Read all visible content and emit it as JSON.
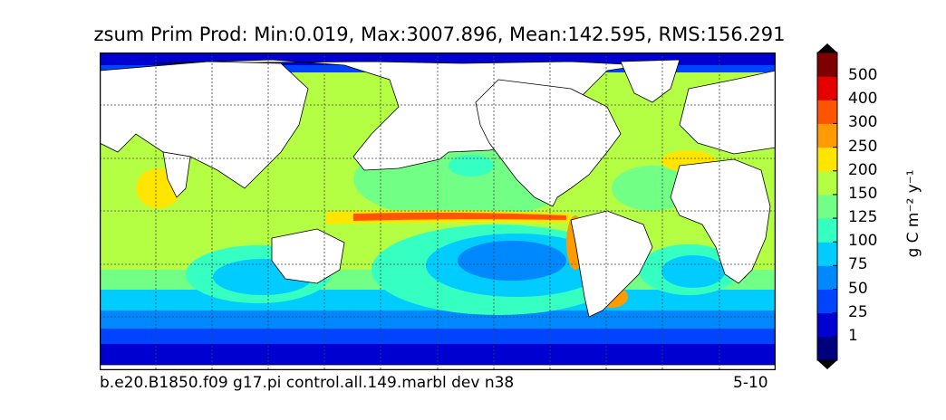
{
  "figure": {
    "title": "zsum Prim Prod: Min:0.019, Max:3007.896, Mean:142.595, RMS:156.291",
    "footer_left": "b.e20.B1850.f09 g17.pi control.all.149.marbl dev n38",
    "footer_right": "5-10"
  },
  "colorbar": {
    "units_label": "g C m⁻² y⁻¹",
    "tick_labels": [
      "1",
      "25",
      "50",
      "75",
      "100",
      "125",
      "150",
      "200",
      "250",
      "300",
      "400",
      "500"
    ],
    "colors": [
      "#00007f",
      "#0000d0",
      "#0044ff",
      "#0088ff",
      "#00ccff",
      "#36ffc2",
      "#72ff86",
      "#b4ff44",
      "#ffe500",
      "#ff9a00",
      "#ff5400",
      "#e50000",
      "#7f0000"
    ]
  },
  "map": {
    "projection": "cylindrical",
    "land_color": "#ffffff",
    "ocean_base_color": "#b4ff44",
    "gridlines": "dashed"
  }
}
